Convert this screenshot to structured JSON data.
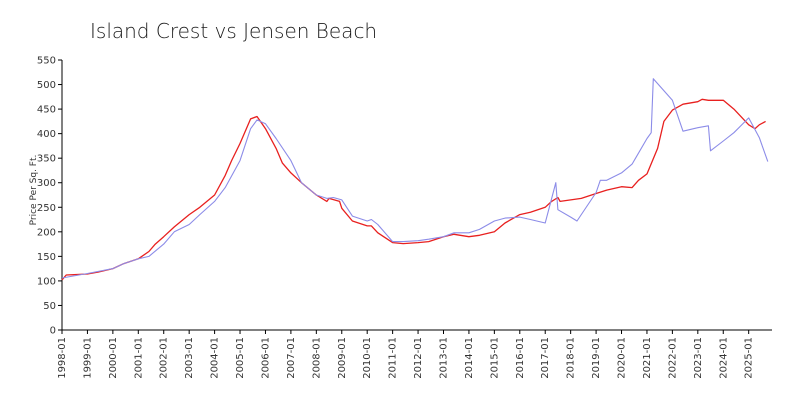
{
  "chart_data": {
    "type": "line",
    "title": "Island Crest vs Jensen Beach",
    "xlabel": "",
    "ylabel": "Price Per Sq. Ft.",
    "ylim": [
      0,
      550
    ],
    "yticks": [
      0,
      50,
      100,
      150,
      200,
      250,
      300,
      350,
      400,
      450,
      500,
      550
    ],
    "xlim": [
      "1998-01",
      "2025-12"
    ],
    "xtick_labels": [
      "1998-01",
      "1999-01",
      "2000-01",
      "2001-01",
      "2002-01",
      "2003-01",
      "2004-01",
      "2005-01",
      "2006-01",
      "2007-01",
      "2008-01",
      "2009-01",
      "2010-01",
      "2011-01",
      "2012-01",
      "2013-01",
      "2014-01",
      "2015-01",
      "2016-01",
      "2017-01",
      "2018-01",
      "2019-01",
      "2020-01",
      "2021-01",
      "2022-01",
      "2023-01",
      "2024-01",
      "2025-01"
    ],
    "grid": false,
    "legend": "none",
    "series": [
      {
        "color": "#e8201f",
        "points": [
          [
            "1998-01",
            102
          ],
          [
            "1998-03",
            112
          ],
          [
            "1999-01",
            114
          ],
          [
            "1999-06",
            118
          ],
          [
            "2000-01",
            125
          ],
          [
            "2000-06",
            135
          ],
          [
            "2001-01",
            145
          ],
          [
            "2001-06",
            160
          ],
          [
            "2001-09",
            175
          ],
          [
            "2002-01",
            190
          ],
          [
            "2002-06",
            210
          ],
          [
            "2003-01",
            235
          ],
          [
            "2003-06",
            250
          ],
          [
            "2004-01",
            275
          ],
          [
            "2004-06",
            315
          ],
          [
            "2004-09",
            345
          ],
          [
            "2005-01",
            380
          ],
          [
            "2005-06",
            430
          ],
          [
            "2005-09",
            435
          ],
          [
            "2006-01",
            410
          ],
          [
            "2006-06",
            370
          ],
          [
            "2006-09",
            340
          ],
          [
            "2007-01",
            320
          ],
          [
            "2007-06",
            300
          ],
          [
            "2008-01",
            275
          ],
          [
            "2008-06",
            262
          ],
          [
            "2008-07",
            268
          ],
          [
            "2008-12",
            262
          ],
          [
            "2009-01",
            248
          ],
          [
            "2009-06",
            222
          ],
          [
            "2010-01",
            212
          ],
          [
            "2010-03",
            212
          ],
          [
            "2010-06",
            198
          ],
          [
            "2011-01",
            178
          ],
          [
            "2011-06",
            176
          ],
          [
            "2012-01",
            178
          ],
          [
            "2012-06",
            180
          ],
          [
            "2013-01",
            190
          ],
          [
            "2013-06",
            195
          ],
          [
            "2014-01",
            190
          ],
          [
            "2014-06",
            193
          ],
          [
            "2015-01",
            200
          ],
          [
            "2015-06",
            218
          ],
          [
            "2016-01",
            235
          ],
          [
            "2016-06",
            240
          ],
          [
            "2017-01",
            250
          ],
          [
            "2017-04",
            262
          ],
          [
            "2017-07",
            270
          ],
          [
            "2017-08",
            262
          ],
          [
            "2018-01",
            265
          ],
          [
            "2018-06",
            268
          ],
          [
            "2019-01",
            278
          ],
          [
            "2019-06",
            285
          ],
          [
            "2020-01",
            292
          ],
          [
            "2020-06",
            290
          ],
          [
            "2020-09",
            305
          ],
          [
            "2021-01",
            318
          ],
          [
            "2021-06",
            370
          ],
          [
            "2021-09",
            425
          ],
          [
            "2022-01",
            448
          ],
          [
            "2022-06",
            460
          ],
          [
            "2023-01",
            465
          ],
          [
            "2023-03",
            470
          ],
          [
            "2023-06",
            468
          ],
          [
            "2024-01",
            468
          ],
          [
            "2024-06",
            450
          ],
          [
            "2025-01",
            418
          ],
          [
            "2025-04",
            410
          ],
          [
            "2025-06",
            418
          ],
          [
            "2025-09",
            425
          ]
        ]
      },
      {
        "color": "#8c8ce8",
        "points": [
          [
            "1998-01",
            106
          ],
          [
            "1999-01",
            115
          ],
          [
            "2000-01",
            125
          ],
          [
            "2000-06",
            135
          ],
          [
            "2001-01",
            145
          ],
          [
            "2001-06",
            150
          ],
          [
            "2002-01",
            175
          ],
          [
            "2002-06",
            200
          ],
          [
            "2003-01",
            215
          ],
          [
            "2003-06",
            235
          ],
          [
            "2004-01",
            262
          ],
          [
            "2004-06",
            290
          ],
          [
            "2005-01",
            345
          ],
          [
            "2005-06",
            410
          ],
          [
            "2005-09",
            428
          ],
          [
            "2006-01",
            420
          ],
          [
            "2006-06",
            390
          ],
          [
            "2007-01",
            345
          ],
          [
            "2007-06",
            300
          ],
          [
            "2008-01",
            275
          ],
          [
            "2008-06",
            268
          ],
          [
            "2008-09",
            270
          ],
          [
            "2009-01",
            265
          ],
          [
            "2009-06",
            232
          ],
          [
            "2010-01",
            222
          ],
          [
            "2010-03",
            225
          ],
          [
            "2010-06",
            215
          ],
          [
            "2011-01",
            180
          ],
          [
            "2011-06",
            180
          ],
          [
            "2012-01",
            182
          ],
          [
            "2012-06",
            185
          ],
          [
            "2013-01",
            190
          ],
          [
            "2013-06",
            198
          ],
          [
            "2014-01",
            198
          ],
          [
            "2014-06",
            205
          ],
          [
            "2015-01",
            222
          ],
          [
            "2015-06",
            228
          ],
          [
            "2016-01",
            230
          ],
          [
            "2016-06",
            225
          ],
          [
            "2017-01",
            218
          ],
          [
            "2017-06",
            300
          ],
          [
            "2017-07",
            245
          ],
          [
            "2018-01",
            230
          ],
          [
            "2018-04",
            222
          ],
          [
            "2019-01",
            280
          ],
          [
            "2019-03",
            305
          ],
          [
            "2019-06",
            305
          ],
          [
            "2020-01",
            320
          ],
          [
            "2020-06",
            338
          ],
          [
            "2021-01",
            390
          ],
          [
            "2021-03",
            402
          ],
          [
            "2021-04",
            512
          ],
          [
            "2022-01",
            468
          ],
          [
            "2022-06",
            405
          ],
          [
            "2023-01",
            412
          ],
          [
            "2023-06",
            416
          ],
          [
            "2023-07",
            365
          ],
          [
            "2024-01",
            385
          ],
          [
            "2024-06",
            402
          ],
          [
            "2025-01",
            432
          ],
          [
            "2025-06",
            392
          ],
          [
            "2025-10",
            343
          ]
        ]
      }
    ]
  }
}
